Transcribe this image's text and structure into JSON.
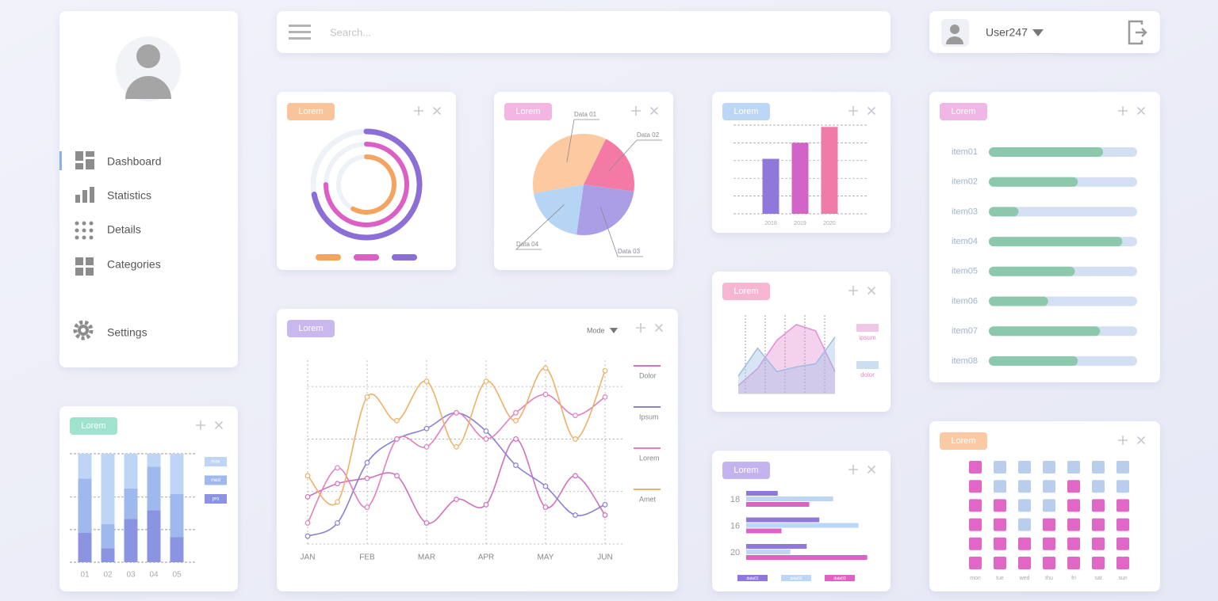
{
  "header": {
    "search_placeholder": "Search...",
    "user": "User247"
  },
  "sidebar": {
    "menu": [
      "Dashboard",
      "Statistics",
      "Details",
      "Categories",
      "Settings"
    ]
  },
  "chart_data": [
    {
      "type": "radial",
      "title": "Lorem",
      "badge_color": "#f9c49a",
      "ylim": [
        0,
        100
      ],
      "series": [
        {
          "color": "#f5a45f",
          "values": [
            58
          ]
        },
        {
          "color": "#dc5fc4",
          "values": [
            75
          ]
        },
        {
          "color": "#8c6fd6",
          "values": [
            72
          ]
        }
      ]
    },
    {
      "type": "pie",
      "title": "Lorem",
      "badge_color": "#f3b5e2",
      "categories": [
        "Data 01",
        "Data 02",
        "Data 03",
        "Data 04"
      ],
      "values": [
        35,
        20,
        25,
        20
      ],
      "colors": [
        "#fdc9a0",
        "#f47aa6",
        "#ab9ee6",
        "#b6d4f3"
      ]
    },
    {
      "type": "bar",
      "title": "Lorem",
      "badge_color": "#bcd6f5",
      "categories": [
        "2018",
        "2019",
        "2020"
      ],
      "values": [
        3.1,
        4.0,
        4.9
      ],
      "colors": [
        "#8f78d9",
        "#d264c8",
        "#f07aa8"
      ],
      "ylim": [
        0,
        5
      ],
      "yticks": [
        0,
        1,
        2,
        3,
        4,
        5
      ],
      "grid": true
    },
    {
      "type": "progress",
      "title": "Lorem",
      "badge_color": "#f0b6e6",
      "categories": [
        "item01",
        "item02",
        "item03",
        "item04",
        "item05",
        "item06",
        "item07",
        "item08"
      ],
      "values": [
        77,
        60,
        20,
        90,
        58,
        40,
        75,
        60
      ],
      "xlim": [
        0,
        100
      ],
      "color": "#8cc9ac",
      "track_color": "#d3dff3"
    },
    {
      "type": "stacked_bar",
      "title": "Lorem",
      "badge_color": "#9fe3cf",
      "categories": [
        "01",
        "02",
        "03",
        "04",
        "05"
      ],
      "ylim": [
        0,
        100
      ],
      "yticks": [
        0,
        30,
        60,
        100
      ],
      "grid": true,
      "series": [
        {
          "name": "pro",
          "color": "#8b94e0",
          "values": [
            27,
            13,
            40,
            48,
            23
          ]
        },
        {
          "name": "med",
          "color": "#9fb9ee",
          "values": [
            50,
            22,
            28,
            40,
            40
          ]
        },
        {
          "name": "max",
          "color": "#bfd5f6",
          "values": [
            23,
            65,
            32,
            12,
            37
          ]
        }
      ]
    },
    {
      "type": "line",
      "title": "Lorem",
      "badge_color": "#c8b8ee",
      "mode_label": "Mode",
      "categories": [
        "JAN",
        null,
        "FEB",
        null,
        "MAR",
        null,
        "APR",
        null,
        "MAY",
        null,
        "JUN"
      ],
      "ylim": [
        0,
        7
      ],
      "yticks": [
        0,
        2,
        4,
        6
      ],
      "grid": true,
      "series": [
        {
          "name": "Dolor",
          "color": "#d070c0",
          "values": [
            1.8,
            2.3,
            2.5,
            2.6,
            0.8,
            1.7,
            1.5,
            4.0,
            1.4,
            2.6,
            1.1
          ]
        },
        {
          "name": "Ipsum",
          "color": "#8c7fd6",
          "values": [
            0.3,
            0.8,
            3.1,
            4.0,
            4.4,
            5.0,
            4.3,
            3.0,
            2.2,
            1.1,
            1.5
          ]
        },
        {
          "name": "Lorem",
          "color": "#e27fc0",
          "values": [
            0.8,
            2.9,
            1.4,
            4.0,
            3.7,
            5.0,
            4.0,
            5.0,
            5.7,
            4.9,
            5.6
          ]
        },
        {
          "name": "Amet",
          "color": "#f0b064",
          "values": [
            2.6,
            1.6,
            5.6,
            4.7,
            6.2,
            3.7,
            6.2,
            4.7,
            6.7,
            4.0,
            6.6
          ]
        }
      ]
    },
    {
      "type": "area",
      "title": "Lorem",
      "badge_color": "#f6b6d2",
      "ylim": [
        0,
        5
      ],
      "series": [
        {
          "name": "ipsum",
          "color": "#e48fd4",
          "values": [
            0.5,
            1.6,
            3.4,
            4.4,
            4.0,
            1.4
          ]
        },
        {
          "name": "dolor",
          "color": "#9dbde3",
          "values": [
            1.1,
            2.9,
            1.4,
            1.7,
            1.9,
            3.6
          ]
        }
      ]
    },
    {
      "type": "hbar",
      "title": "Lorem",
      "badge_color": "#c3b3ef",
      "categories": [
        "18",
        "16",
        "20"
      ],
      "xlim": [
        0,
        100
      ],
      "series": [
        {
          "name": "data01",
          "color": "#8f78d9",
          "values": [
            25,
            58,
            48
          ]
        },
        {
          "name": "data02",
          "color": "#bcd6f5",
          "values": [
            69,
            89,
            35
          ]
        },
        {
          "name": "data03",
          "color": "#dc62c6",
          "values": [
            50,
            28,
            96
          ]
        }
      ]
    },
    {
      "type": "heatmap",
      "title": "Lorem",
      "badge_color": "#fbc9a3",
      "categories": [
        "mon",
        "tue",
        "wed",
        "thu",
        "fri",
        "sat",
        "sun"
      ],
      "colors": [
        "#b9cdec",
        "#e067c6"
      ],
      "values": [
        [
          1,
          0,
          0,
          0,
          0,
          0,
          0
        ],
        [
          1,
          0,
          0,
          0,
          1,
          0,
          0
        ],
        [
          1,
          1,
          0,
          0,
          1,
          1,
          1
        ],
        [
          1,
          1,
          0,
          1,
          1,
          1,
          1
        ],
        [
          1,
          1,
          1,
          1,
          1,
          1,
          1
        ],
        [
          1,
          1,
          1,
          1,
          1,
          1,
          1
        ]
      ]
    }
  ]
}
